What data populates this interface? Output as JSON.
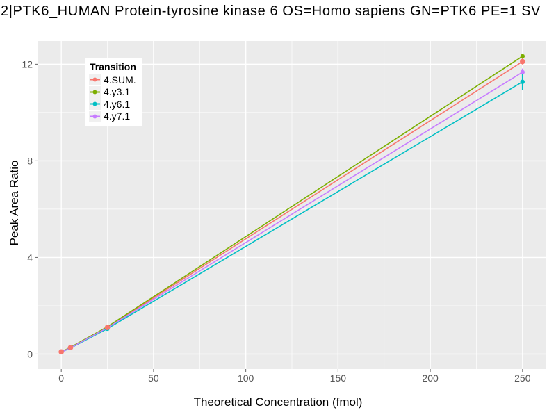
{
  "title": "2|PTK6_HUMAN Protein-tyrosine kinase 6 OS=Homo sapiens GN=PTK6 PE=1 SV",
  "chart_data": {
    "type": "line",
    "title": "2|PTK6_HUMAN Protein-tyrosine kinase 6 OS=Homo sapiens GN=PTK6 PE=1 SV",
    "xlabel": "Theoretical Concentration (fmol)",
    "ylabel": "Peak Area Ratio",
    "legend": {
      "title": "Transition",
      "position": "inside-top-left"
    },
    "axes": {
      "x_ticks": [
        0,
        50,
        100,
        150,
        200,
        250
      ],
      "x_minor_ticks": [
        25,
        75,
        125,
        175,
        225
      ],
      "y_ticks": [
        0,
        4,
        8,
        12
      ],
      "y_minor_ticks": [
        2,
        6,
        10
      ],
      "x_domain": [
        -12.5,
        262.5
      ],
      "y_domain": [
        -0.62,
        12.96
      ],
      "grid": true
    },
    "x": [
      0,
      5,
      25,
      250
    ],
    "series": [
      {
        "name": "4.SUM.",
        "color": "#F8766D",
        "values": [
          0.09,
          0.27,
          1.1,
          12.11
        ],
        "errors": [
          0,
          0,
          0,
          0.12
        ],
        "point_size": 3.8
      },
      {
        "name": "4.y3.1",
        "color": "#7CAE00",
        "values": [
          0.09,
          0.28,
          1.13,
          12.33
        ],
        "errors": [
          0,
          0,
          0,
          0.1
        ],
        "point_size": 3.2
      },
      {
        "name": "4.y6.1",
        "color": "#00BFC4",
        "values": [
          0.08,
          0.25,
          1.05,
          11.27
        ],
        "errors": [
          0,
          0,
          0,
          0.35
        ],
        "point_size": 3.2
      },
      {
        "name": "4.y7.1",
        "color": "#C77CFF",
        "values": [
          0.08,
          0.26,
          1.09,
          11.67
        ],
        "errors": [
          0,
          0,
          0,
          0.15
        ],
        "point_size": 3.2
      }
    ],
    "style": {
      "panel_bg": "#EBEBEB",
      "grid_major": "#FFFFFF",
      "grid_minor": "#FFFFFF",
      "tick_color": "#666666",
      "tick_label_color": "#555555",
      "text_color": "#000000",
      "line_width": 1.6
    }
  }
}
